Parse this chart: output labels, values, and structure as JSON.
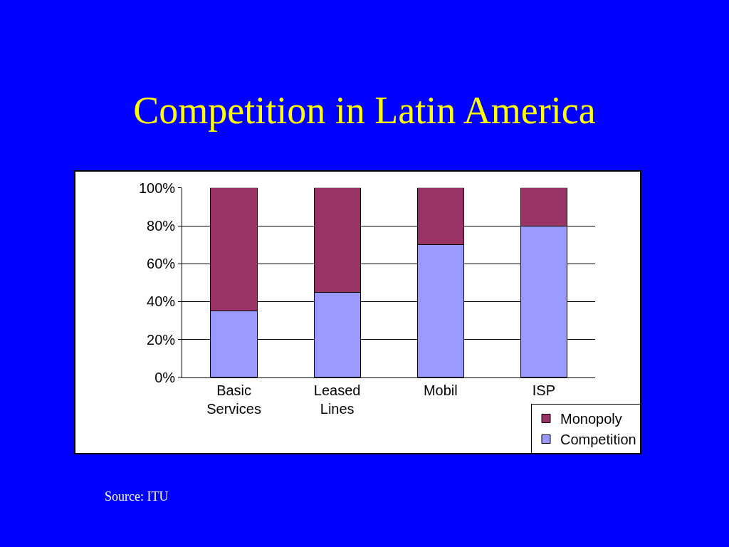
{
  "chart_data": {
    "type": "bar",
    "title": "Competition in Latin America",
    "stacked": true,
    "categories": [
      "Basic Services",
      "Leased Lines",
      "Mobil",
      "ISP"
    ],
    "series": [
      {
        "name": "Competition",
        "color": "#9999ff",
        "values": [
          35,
          45,
          70,
          80
        ]
      },
      {
        "name": "Monopoly",
        "color": "#993366",
        "values": [
          65,
          55,
          30,
          20
        ]
      }
    ],
    "ylim": [
      0,
      100
    ],
    "yticks": [
      {
        "value": 0,
        "label": "0%"
      },
      {
        "value": 20,
        "label": "20%"
      },
      {
        "value": 40,
        "label": "40%"
      },
      {
        "value": 60,
        "label": "60%"
      },
      {
        "value": 80,
        "label": "80%"
      },
      {
        "value": 100,
        "label": "100%"
      }
    ],
    "grid": "y",
    "legend": "bottom right",
    "annotations": [
      "Source: ITU"
    ]
  }
}
